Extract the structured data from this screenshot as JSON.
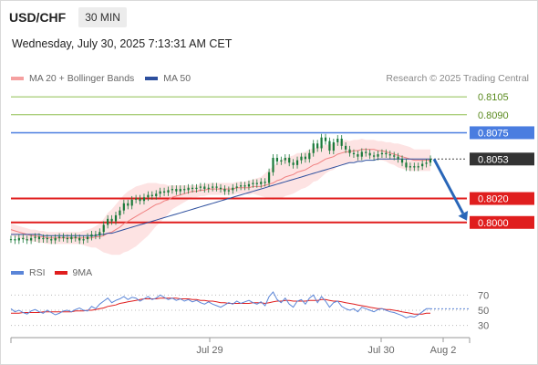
{
  "header": {
    "symbol": "USD/CHF",
    "timeframe": "30 MIN",
    "datetime": "Wednesday, July 30, 2025 7:13:31 AM CET"
  },
  "legend": {
    "ma20_label": "MA 20 + Bollinger Bands",
    "ma50_label": "MA 50",
    "credit": "Research © 2025 Trading Central",
    "rsi_label": "RSI",
    "rsi_ma_label": "9MA"
  },
  "colors": {
    "ma20": "#f08080",
    "ma50": "#2d4f9e",
    "bollinger_fill": "#fde3e3",
    "candle": "#1a7a3a",
    "resistance_blue": "#4a7de0",
    "target_green": "#8fbf50",
    "support_red": "#e01e1e",
    "arrow": "#2966b8",
    "rsi": "#5a85d8",
    "rsi_ma": "#e01e1e",
    "last_price_bg": "#333333"
  },
  "chart_data": {
    "type": "line",
    "title": "USD/CHF",
    "y_range": [
      0.798,
      0.8115
    ],
    "x_tick_labels": [
      "Jul 29",
      "Jul 30",
      "Aug 2"
    ],
    "price_levels": [
      {
        "value": 0.8105,
        "label": "0.8105",
        "kind": "target"
      },
      {
        "value": 0.809,
        "label": "0.8090",
        "kind": "target"
      },
      {
        "value": 0.8075,
        "label": "0.8075",
        "kind": "resistance"
      },
      {
        "value": 0.8053,
        "label": "0.8053",
        "kind": "last"
      },
      {
        "value": 0.802,
        "label": "0.8020",
        "kind": "support"
      },
      {
        "value": 0.8,
        "label": "0.8000",
        "kind": "support"
      }
    ],
    "projection": {
      "from": 0.8053,
      "to": 0.8,
      "direction": "down"
    },
    "price_series": [
      0.7986,
      0.7985,
      0.7987,
      0.7986,
      0.7985,
      0.7987,
      0.7988,
      0.7986,
      0.7987,
      0.7986,
      0.7985,
      0.7987,
      0.7988,
      0.7987,
      0.7986,
      0.7988,
      0.7987,
      0.7985,
      0.7986,
      0.7988,
      0.799,
      0.7989,
      0.7992,
      0.7998,
      0.8003,
      0.8001,
      0.8006,
      0.801,
      0.8016,
      0.8014,
      0.8019,
      0.802,
      0.8018,
      0.8021,
      0.8023,
      0.8022,
      0.8024,
      0.8026,
      0.8025,
      0.8027,
      0.8028,
      0.8026,
      0.8028,
      0.8027,
      0.8029,
      0.8028,
      0.8029,
      0.803,
      0.8028,
      0.8029,
      0.803,
      0.8029,
      0.8028,
      0.8026,
      0.8027,
      0.8029,
      0.803,
      0.8031,
      0.803,
      0.8032,
      0.8033,
      0.8032,
      0.8034,
      0.8033,
      0.8042,
      0.8054,
      0.8051,
      0.8052,
      0.8054,
      0.805,
      0.8048,
      0.8052,
      0.8055,
      0.8053,
      0.8058,
      0.8066,
      0.8062,
      0.8071,
      0.8068,
      0.806,
      0.8067,
      0.807,
      0.8064,
      0.8061,
      0.8058,
      0.8057,
      0.8055,
      0.8059,
      0.8058,
      0.8056,
      0.8055,
      0.8057,
      0.8058,
      0.8057,
      0.8056,
      0.8055,
      0.8053,
      0.805,
      0.8046,
      0.8047,
      0.8046,
      0.8047,
      0.8049,
      0.805,
      0.8053
    ],
    "ma20_series": [
      0.7994,
      0.7993,
      0.7992,
      0.7991,
      0.799,
      0.7989,
      0.7989,
      0.7988,
      0.7988,
      0.7987,
      0.7987,
      0.7987,
      0.7987,
      0.7987,
      0.7987,
      0.7987,
      0.7987,
      0.7987,
      0.7987,
      0.7987,
      0.7987,
      0.7988,
      0.7988,
      0.7989,
      0.7991,
      0.7992,
      0.7994,
      0.7996,
      0.7999,
      0.8001,
      0.8003,
      0.8005,
      0.8007,
      0.8009,
      0.8011,
      0.8013,
      0.8015,
      0.8016,
      0.8018,
      0.8019,
      0.8021,
      0.8022,
      0.8023,
      0.8024,
      0.8025,
      0.8026,
      0.8026,
      0.8027,
      0.8027,
      0.8028,
      0.8028,
      0.8028,
      0.8028,
      0.8028,
      0.8028,
      0.8028,
      0.8029,
      0.8029,
      0.8029,
      0.8029,
      0.803,
      0.803,
      0.803,
      0.8031,
      0.8032,
      0.8033,
      0.8035,
      0.8036,
      0.8038,
      0.8039,
      0.804,
      0.8042,
      0.8043,
      0.8044,
      0.8046,
      0.8048,
      0.8049,
      0.8051,
      0.8053,
      0.8054,
      0.8055,
      0.8057,
      0.8058,
      0.8059,
      0.8059,
      0.806,
      0.806,
      0.8061,
      0.8061,
      0.8061,
      0.8061,
      0.806,
      0.806,
      0.8059,
      0.8058,
      0.8057,
      0.8056,
      0.8055,
      0.8054,
      0.8053,
      0.8052,
      0.8052,
      0.8052,
      0.8052,
      0.8052
    ],
    "ma50_series": [
      0.799,
      0.799,
      0.799,
      0.799,
      0.799,
      0.799,
      0.799,
      0.799,
      0.7989,
      0.7989,
      0.7989,
      0.7989,
      0.7989,
      0.7989,
      0.7989,
      0.7989,
      0.7989,
      0.7989,
      0.7989,
      0.7989,
      0.7989,
      0.7989,
      0.799,
      0.799,
      0.7991,
      0.7991,
      0.7992,
      0.7993,
      0.7994,
      0.7995,
      0.7996,
      0.7997,
      0.7998,
      0.7999,
      0.8,
      0.8001,
      0.8002,
      0.8003,
      0.8004,
      0.8005,
      0.8006,
      0.8007,
      0.8008,
      0.8009,
      0.801,
      0.8011,
      0.8012,
      0.8013,
      0.8014,
      0.8015,
      0.8016,
      0.8017,
      0.8018,
      0.8019,
      0.802,
      0.8021,
      0.8022,
      0.8023,
      0.8024,
      0.8025,
      0.8026,
      0.8027,
      0.8028,
      0.8029,
      0.803,
      0.8031,
      0.8032,
      0.8033,
      0.8034,
      0.8035,
      0.8036,
      0.8037,
      0.8038,
      0.8039,
      0.804,
      0.8041,
      0.8042,
      0.8043,
      0.8044,
      0.8045,
      0.8046,
      0.8047,
      0.8048,
      0.8049,
      0.805,
      0.805,
      0.8051,
      0.8051,
      0.8052,
      0.8052,
      0.8052,
      0.8053,
      0.8053,
      0.8053,
      0.8053,
      0.8053,
      0.8053,
      0.8053,
      0.8053,
      0.8053,
      0.8053,
      0.8053,
      0.8053,
      0.8053,
      0.8053
    ],
    "bollinger_width": [
      0.0005,
      0.0005,
      0.0005,
      0.0005,
      0.0005,
      0.0005,
      0.0005,
      0.0005,
      0.0005,
      0.0005,
      0.0005,
      0.0005,
      0.0005,
      0.0005,
      0.0005,
      0.0005,
      0.0005,
      0.0005,
      0.0006,
      0.0007,
      0.0008,
      0.0009,
      0.0011,
      0.0014,
      0.0017,
      0.0019,
      0.0021,
      0.0023,
      0.0024,
      0.0025,
      0.0025,
      0.0025,
      0.0024,
      0.0023,
      0.0022,
      0.002,
      0.0018,
      0.0016,
      0.0014,
      0.0012,
      0.001,
      0.0009,
      0.0008,
      0.0007,
      0.0006,
      0.0005,
      0.0005,
      0.0005,
      0.0005,
      0.0005,
      0.0005,
      0.0005,
      0.0005,
      0.0005,
      0.0005,
      0.0005,
      0.0005,
      0.0005,
      0.0005,
      0.0006,
      0.0006,
      0.0007,
      0.0008,
      0.001,
      0.0012,
      0.0014,
      0.0015,
      0.0016,
      0.0016,
      0.0016,
      0.0016,
      0.0016,
      0.0015,
      0.0015,
      0.0015,
      0.0014,
      0.0014,
      0.0013,
      0.0012,
      0.0011,
      0.0011,
      0.001,
      0.001,
      0.001,
      0.0009,
      0.0009,
      0.0009,
      0.0009,
      0.0008,
      0.0008,
      0.0008,
      0.0008,
      0.0008,
      0.0008,
      0.0009,
      0.0009,
      0.001,
      0.001,
      0.001,
      0.001,
      0.0009,
      0.0009,
      0.0009,
      0.0009,
      0.0009
    ],
    "rsi": {
      "y_range": [
        20,
        80
      ],
      "tick_labels": [
        "70",
        "50",
        "30"
      ],
      "ticks": [
        70,
        50,
        30
      ],
      "rsi_series": [
        52,
        48,
        50,
        47,
        45,
        49,
        51,
        48,
        46,
        50,
        47,
        44,
        46,
        49,
        50,
        48,
        51,
        53,
        50,
        49,
        55,
        52,
        58,
        62,
        66,
        60,
        63,
        65,
        68,
        64,
        67,
        66,
        62,
        65,
        68,
        64,
        66,
        70,
        67,
        64,
        66,
        63,
        65,
        62,
        64,
        61,
        63,
        60,
        58,
        61,
        58,
        56,
        54,
        57,
        60,
        58,
        62,
        59,
        61,
        63,
        60,
        58,
        61,
        56,
        68,
        74,
        64,
        60,
        66,
        58,
        54,
        62,
        64,
        58,
        66,
        70,
        60,
        68,
        62,
        54,
        60,
        62,
        55,
        52,
        50,
        52,
        48,
        54,
        52,
        50,
        48,
        51,
        52,
        50,
        48,
        47,
        45,
        43,
        40,
        42,
        41,
        44,
        48,
        52,
        52
      ],
      "ma_series": [
        46,
        46,
        46,
        47,
        47,
        47,
        47,
        47,
        48,
        48,
        48,
        48,
        48,
        48,
        48,
        48,
        49,
        49,
        49,
        50,
        50,
        51,
        52,
        53,
        55,
        56,
        57,
        59,
        60,
        61,
        62,
        63,
        64,
        65,
        65,
        65,
        65,
        66,
        66,
        66,
        66,
        66,
        65,
        65,
        65,
        64,
        64,
        63,
        63,
        62,
        62,
        61,
        60,
        60,
        59,
        59,
        59,
        59,
        59,
        59,
        60,
        60,
        60,
        59,
        60,
        61,
        62,
        62,
        63,
        63,
        62,
        62,
        62,
        62,
        63,
        63,
        63,
        64,
        64,
        63,
        62,
        62,
        61,
        60,
        59,
        58,
        57,
        56,
        55,
        54,
        53,
        52,
        52,
        51,
        51,
        50,
        49,
        48,
        47,
        46,
        45,
        45,
        45,
        46,
        46
      ]
    }
  }
}
